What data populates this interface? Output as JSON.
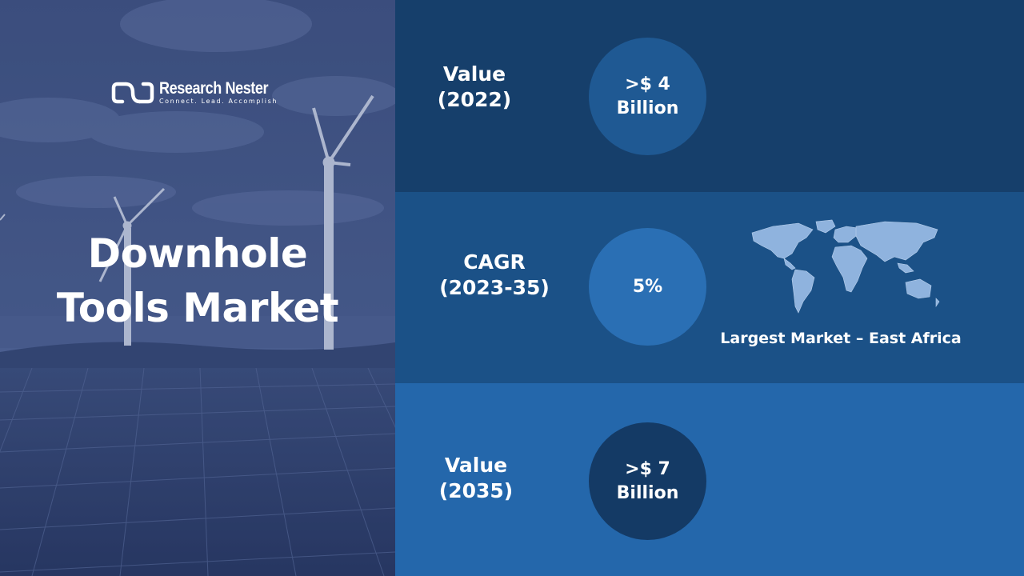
{
  "brand": {
    "name": "Research Nester",
    "tagline": "Connect. Lead. Accomplish"
  },
  "title": {
    "line1": "Downhole",
    "line2": "Tools Market"
  },
  "stats": [
    {
      "label_line1": "Value",
      "label_line2": "(2022)",
      "value_line1": ">$ 4",
      "value_line2": "Billion"
    },
    {
      "label_line1": "CAGR",
      "label_line2": "(2023-35)",
      "value_line1": "5%"
    },
    {
      "label_line1": "Value",
      "label_line2": "(2035)",
      "value_line1": ">$ 7",
      "value_line2": "Billion"
    }
  ],
  "map_caption": "Largest Market – East Africa",
  "colors": {
    "band_dark": "#163f6b",
    "band_mid": "#1b5187",
    "band_light": "#2467ab",
    "hero_overlay": "#3b4f7e"
  }
}
